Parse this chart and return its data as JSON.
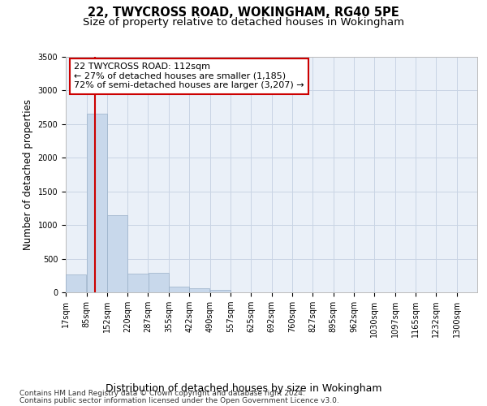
{
  "title1": "22, TWYCROSS ROAD, WOKINGHAM, RG40 5PE",
  "title2": "Size of property relative to detached houses in Wokingham",
  "xlabel": "Distribution of detached houses by size in Wokingham",
  "ylabel": "Number of detached properties",
  "bar_bins": [
    17,
    85,
    152,
    220,
    287,
    355,
    422,
    490,
    557,
    625,
    692,
    760,
    827,
    895,
    962,
    1030,
    1097,
    1165,
    1232,
    1300,
    1367
  ],
  "bar_values": [
    270,
    2650,
    1150,
    280,
    285,
    85,
    55,
    35,
    4,
    3,
    2,
    1,
    1,
    1,
    0,
    0,
    0,
    0,
    0,
    0
  ],
  "bar_color": "#c8d8eb",
  "bar_edge_color": "#9ab0c8",
  "grid_color": "#c8d4e4",
  "background_color": "#eaf0f8",
  "property_line_x": 112,
  "property_line_color": "#cc0000",
  "annotation_title": "22 TWYCROSS ROAD: 112sqm",
  "annotation_line1": "← 27% of detached houses are smaller (1,185)",
  "annotation_line2": "72% of semi-detached houses are larger (3,207) →",
  "annotation_box_color": "#cc0000",
  "ylim": [
    0,
    3500
  ],
  "yticks": [
    0,
    500,
    1000,
    1500,
    2000,
    2500,
    3000,
    3500
  ],
  "footnote1": "Contains HM Land Registry data © Crown copyright and database right 2024.",
  "footnote2": "Contains public sector information licensed under the Open Government Licence v3.0.",
  "title1_fontsize": 10.5,
  "title2_fontsize": 9.5,
  "xlabel_fontsize": 9,
  "ylabel_fontsize": 8.5,
  "tick_fontsize": 7,
  "annotation_fontsize": 8,
  "footnote_fontsize": 6.5
}
